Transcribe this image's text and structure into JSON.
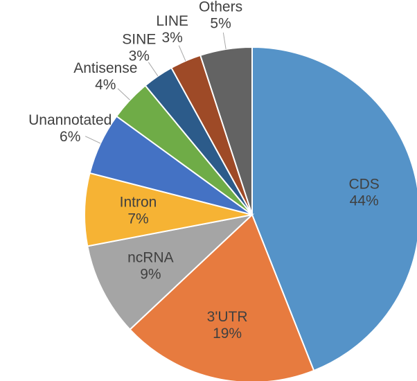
{
  "chart_data": {
    "type": "pie",
    "categories": [
      "CDS",
      "3'UTR",
      "ncRNA",
      "Intron",
      "Unannotated",
      "Antisense",
      "SINE",
      "LINE",
      "Others"
    ],
    "values": [
      44,
      19,
      9,
      7,
      6,
      4,
      3,
      3,
      5
    ],
    "value_labels": [
      "44%",
      "19%",
      "9%",
      "7%",
      "6%",
      "4%",
      "3%",
      "3%",
      "5%"
    ],
    "colors": [
      "#5593c8",
      "#e77b3f",
      "#a5a5a5",
      "#f6b334",
      "#4472c4",
      "#6fac47",
      "#2c5b8a",
      "#9e4a27",
      "#636363"
    ]
  }
}
